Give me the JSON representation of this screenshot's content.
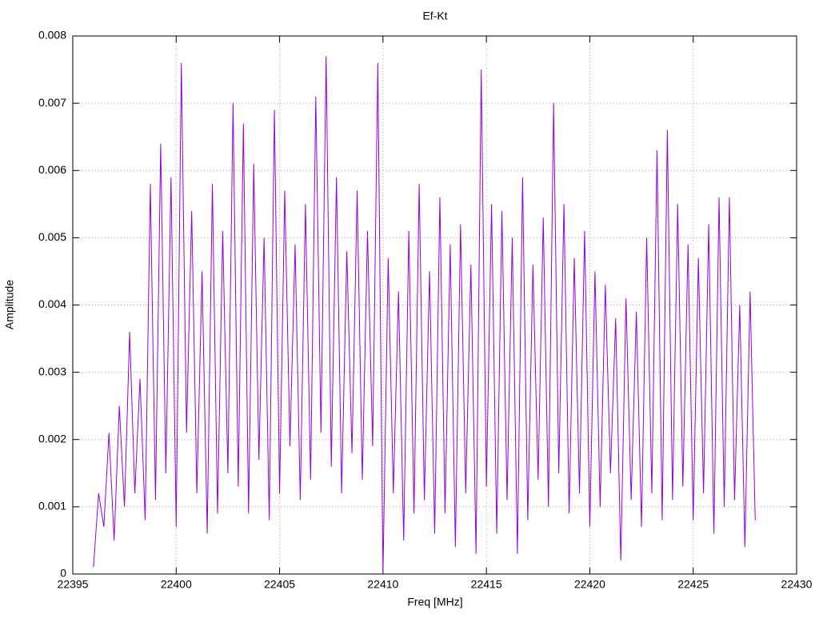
{
  "chart_data": {
    "type": "line",
    "title": "Ef-Kt",
    "x_label": "Freq [MHz]",
    "y_label": "Amplitude",
    "xlim": [
      22395,
      22430
    ],
    "xticks": [
      22395,
      22400,
      22405,
      22410,
      22415,
      22420,
      22425,
      22430
    ],
    "ylim": [
      0,
      0.008
    ],
    "yticks": [
      0,
      0.001,
      0.002,
      0.003,
      0.004,
      0.005,
      0.006,
      0.007,
      0.008
    ],
    "grid": true,
    "series": [
      {
        "color": "#9400d3",
        "x": [
          22396,
          22396.25,
          22396.5,
          22396.75,
          22397,
          22397.25,
          22397.5,
          22397.75,
          22398,
          22398.25,
          22398.5,
          22398.75,
          22399,
          22399.25,
          22399.5,
          22399.75,
          22400,
          22400.25,
          22400.5,
          22400.75,
          22401,
          22401.25,
          22401.5,
          22401.75,
          22402,
          22402.25,
          22402.5,
          22402.75,
          22403,
          22403.25,
          22403.5,
          22403.75,
          22404,
          22404.25,
          22404.5,
          22404.75,
          22405,
          22405.25,
          22405.5,
          22405.75,
          22406,
          22406.25,
          22406.5,
          22406.75,
          22407,
          22407.25,
          22407.5,
          22407.75,
          22408,
          22408.25,
          22408.5,
          22408.75,
          22409,
          22409.25,
          22409.5,
          22409.75,
          22410,
          22410.25,
          22410.5,
          22410.75,
          22411,
          22411.25,
          22411.5,
          22411.75,
          22412,
          22412.25,
          22412.5,
          22412.75,
          22413,
          22413.25,
          22413.5,
          22413.75,
          22414,
          22414.25,
          22414.5,
          22414.75,
          22415,
          22415.25,
          22415.5,
          22415.75,
          22416,
          22416.25,
          22416.5,
          22416.75,
          22417,
          22417.25,
          22417.5,
          22417.75,
          22418,
          22418.25,
          22418.5,
          22418.75,
          22419,
          22419.25,
          22419.5,
          22419.75,
          22420,
          22420.25,
          22420.5,
          22420.75,
          22421,
          22421.25,
          22421.5,
          22421.75,
          22422,
          22422.25,
          22422.5,
          22422.75,
          22423,
          22423.25,
          22423.5,
          22423.75,
          22424,
          22424.25,
          22424.5,
          22424.75,
          22425,
          22425.25,
          22425.5,
          22425.75,
          22426,
          22426.25,
          22426.5,
          22426.75,
          22427,
          22427.25,
          22427.5,
          22427.75,
          22428
        ],
        "values": [
          0.0001,
          0.0012,
          0.0007,
          0.0021,
          0.0005,
          0.0025,
          0.001,
          0.0036,
          0.0012,
          0.0029,
          0.0008,
          0.0058,
          0.0011,
          0.0064,
          0.0015,
          0.0059,
          0.0007,
          0.0076,
          0.0021,
          0.0054,
          0.0012,
          0.0045,
          0.0006,
          0.0058,
          0.0009,
          0.0051,
          0.0015,
          0.007,
          0.0013,
          0.0067,
          0.0009,
          0.0061,
          0.0017,
          0.005,
          0.0008,
          0.0069,
          0.0012,
          0.0057,
          0.0019,
          0.0049,
          0.0011,
          0.0055,
          0.0014,
          0.0071,
          0.0021,
          0.0077,
          0.0016,
          0.0059,
          0.0012,
          0.0048,
          0.0018,
          0.0057,
          0.0014,
          0.0051,
          0.0019,
          0.0076,
          0,
          0.0047,
          0.0012,
          0.0042,
          0.0005,
          0.0051,
          0.0009,
          0.0058,
          0.0011,
          0.0045,
          0.0006,
          0.0056,
          0.0009,
          0.0049,
          0.0004,
          0.0052,
          0.0012,
          0.0046,
          0.0003,
          0.0075,
          0.0013,
          0.0055,
          0.0006,
          0.0054,
          0.0011,
          0.005,
          0.0003,
          0.0059,
          0.0008,
          0.0046,
          0.0014,
          0.0053,
          0.001,
          0.007,
          0.0015,
          0.0055,
          0.0009,
          0.0047,
          0.0012,
          0.0051,
          0.0007,
          0.0045,
          0.001,
          0.0043,
          0.0015,
          0.0038,
          0.0002,
          0.0041,
          0.0011,
          0.0039,
          0.0007,
          0.005,
          0.0012,
          0.0063,
          0.0008,
          0.0066,
          0.0011,
          0.0055,
          0.0013,
          0.0049,
          0.0008,
          0.0047,
          0.0012,
          0.0052,
          0.0006,
          0.0056,
          0.001,
          0.0056,
          0.0011,
          0.004,
          0.0004,
          0.0042,
          0.0008
        ]
      }
    ]
  }
}
